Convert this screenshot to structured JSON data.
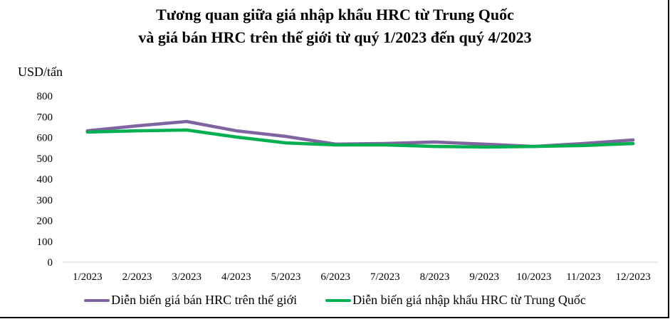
{
  "title_line1": "Tương quan giữa giá nhập khẩu HRC từ Trung Quốc",
  "title_line2": "và giá bán HRC trên thế giới từ quý 1/2023 đến quý 4/2023",
  "y_axis_label": "USD/tấn",
  "legend": [
    {
      "label": "Diễn biến giá bán HRC trên thế giới",
      "color": "#8064a2"
    },
    {
      "label": "Diễn biến giá nhập khẩu HRC từ Trung Quốc",
      "color": "#00b050"
    }
  ],
  "chart_data": {
    "type": "line",
    "title": "Tương quan giữa giá nhập khẩu HRC từ Trung Quốc và giá bán HRC trên thế giới từ quý 1/2023 đến quý 4/2023",
    "xlabel": "",
    "ylabel": "USD/tấn",
    "ylim": [
      0,
      800
    ],
    "yticks": [
      0,
      100,
      200,
      300,
      400,
      500,
      600,
      700,
      800
    ],
    "grid": false,
    "legend_position": "bottom",
    "categories": [
      "1/2023",
      "2/2023",
      "3/2023",
      "4/2023",
      "5/2023",
      "6/2023",
      "7/2023",
      "8/2023",
      "9/2023",
      "10/2023",
      "11/2023",
      "12/2023"
    ],
    "series": [
      {
        "name": "Diễn biến giá bán HRC trên thế giới",
        "color": "#8064a2",
        "values": [
          632,
          656,
          677,
          632,
          605,
          568,
          571,
          578,
          568,
          557,
          571,
          588
        ]
      },
      {
        "name": "Diễn biến giá nhập khẩu HRC từ Trung Quốc",
        "color": "#00b050",
        "values": [
          626,
          632,
          636,
          602,
          574,
          564,
          564,
          557,
          554,
          557,
          561,
          571
        ]
      }
    ]
  }
}
